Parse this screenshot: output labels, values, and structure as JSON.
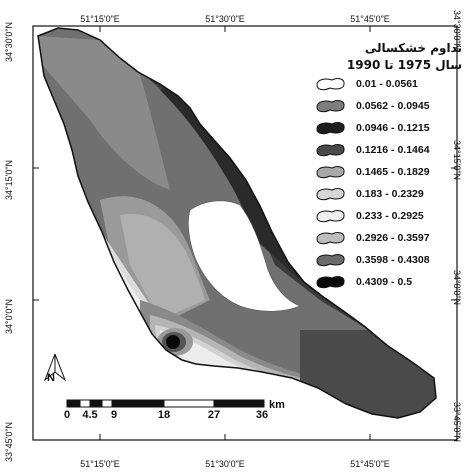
{
  "coordinates": {
    "top": [
      "51°15'0\"E",
      "51°30'0\"E",
      "51°45'0\"E"
    ],
    "bottom": [
      "51°15'0\"E",
      "51°30'0\"E",
      "51°45'0\"E"
    ],
    "left": [
      "34°30'0\"N",
      "34°15'0\"N",
      "34°0'0\"N",
      "33°45'0\"N"
    ],
    "right": [
      "34°30'0\"N",
      "34°15'0\"N",
      "34°0'0\"N",
      "33°45'0\"N"
    ]
  },
  "legend": {
    "title": "تداوم خشکسالی",
    "subtitle": "سال 1975 تا 1990",
    "items": [
      {
        "label": "0.01 - 0.0561",
        "color": "#ffffff"
      },
      {
        "label": "0.0562 - 0.0945",
        "color": "#7e7e7e"
      },
      {
        "label": "0.0946 - 0.1215",
        "color": "#1e1e1e"
      },
      {
        "label": "0.1216 - 0.1464",
        "color": "#4a4a4a"
      },
      {
        "label": "0.1465 - 0.1829",
        "color": "#a8a8a8"
      },
      {
        "label": "0.183 - 0.2329",
        "color": "#d6d6d6"
      },
      {
        "label": "0.233 - 0.2925",
        "color": "#efefef"
      },
      {
        "label": "0.2926 - 0.3597",
        "color": "#bdbdbd"
      },
      {
        "label": "0.3598 - 0.4308",
        "color": "#6a6a6a"
      },
      {
        "label": "0.4309 - 0.5",
        "color": "#0a0a0a"
      }
    ]
  },
  "scale_bar": {
    "labels": [
      "0",
      "4.5",
      "9",
      "18",
      "27",
      "36"
    ],
    "unit": "km"
  },
  "north_arrow": {
    "label": "N"
  }
}
